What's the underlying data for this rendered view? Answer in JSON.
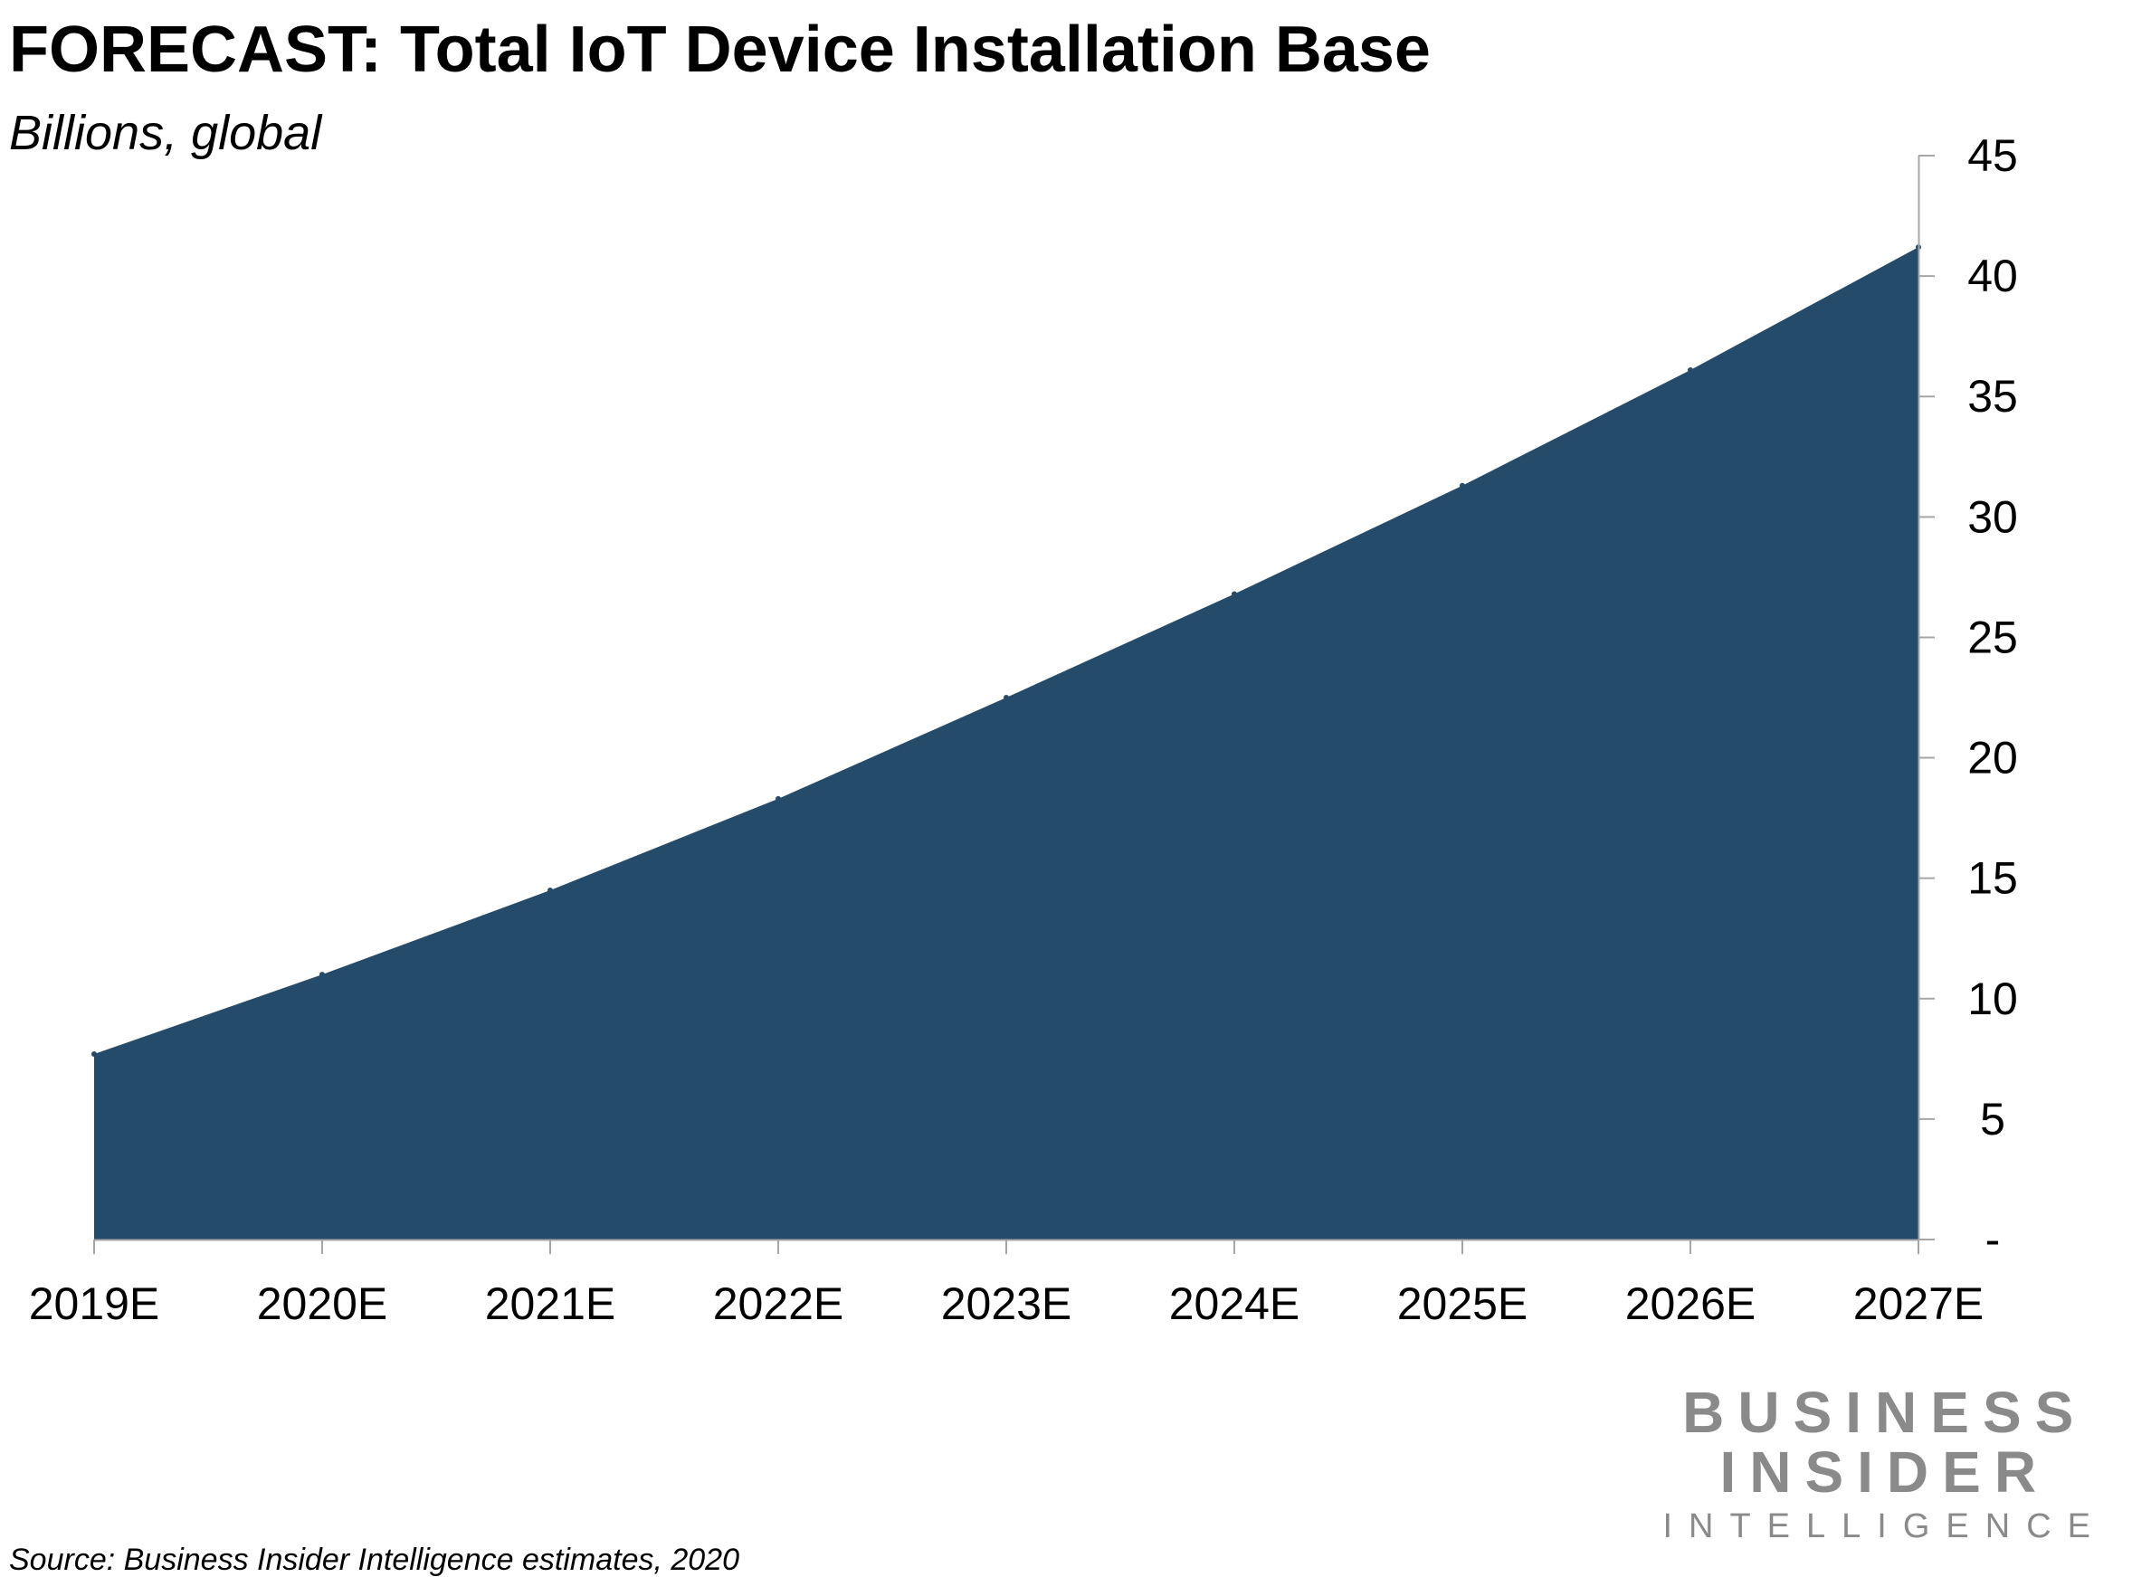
{
  "chart_data": {
    "type": "area",
    "title": "FORECAST: Total IoT Device Installation Base",
    "subtitle": "Billions, global",
    "categories": [
      "2019E",
      "2020E",
      "2021E",
      "2022E",
      "2023E",
      "2024E",
      "2025E",
      "2026E",
      "2027E"
    ],
    "series": [
      {
        "name": "Total IoT Device Installation Base",
        "values": [
          7.7,
          11.0,
          14.5,
          18.3,
          22.5,
          26.8,
          31.3,
          36.1,
          41.2
        ],
        "color": "#254b6b"
      }
    ],
    "y_ticks": [
      0,
      5,
      10,
      15,
      20,
      25,
      30,
      35,
      40,
      45
    ],
    "y_tick_labels": [
      "-",
      "5",
      "10",
      "15",
      "20",
      "25",
      "30",
      "35",
      "40",
      "45"
    ],
    "ylim": [
      0,
      45
    ],
    "y_axis_side": "right",
    "xlabel": "",
    "ylabel": "",
    "grid": false,
    "source": "Source: Business Insider Intelligence estimates, 2020"
  },
  "branding": {
    "line1": "BUSINESS",
    "line2": "INSIDER",
    "line3": "INTELLIGENCE"
  }
}
